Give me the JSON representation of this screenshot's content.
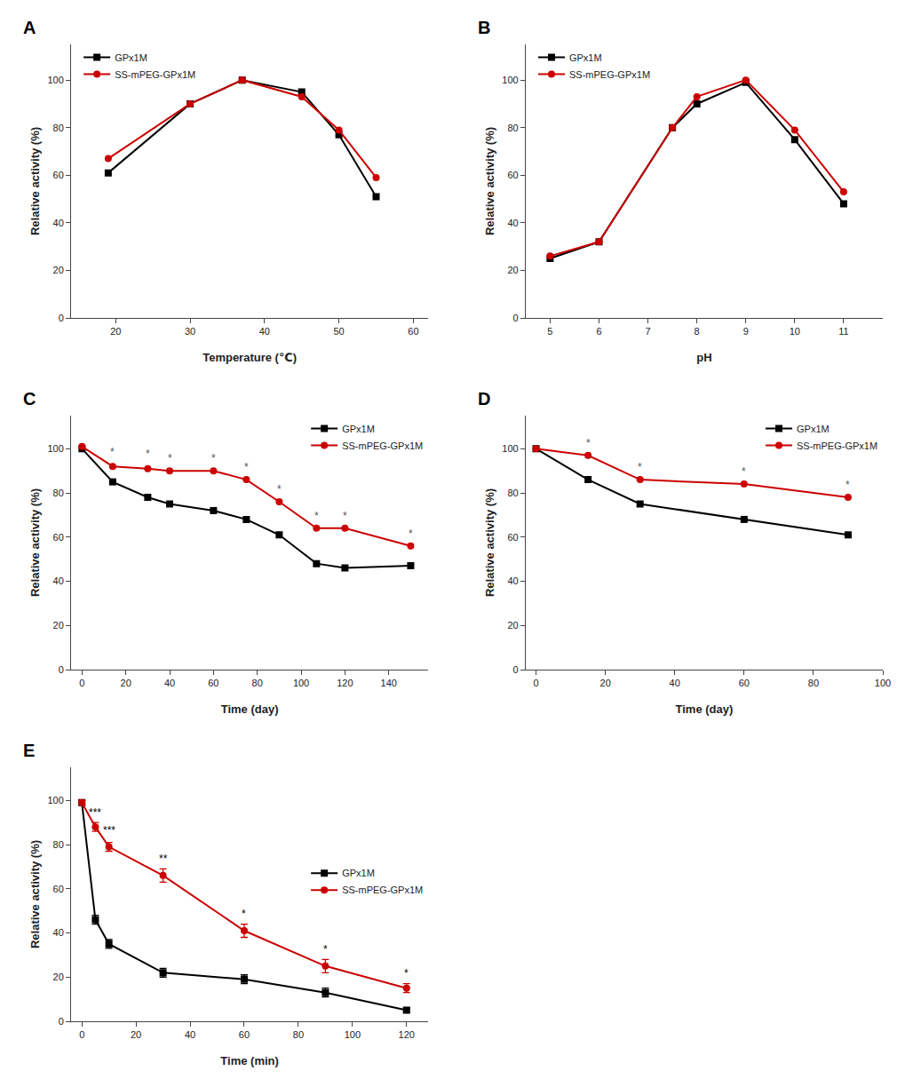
{
  "chart_data": [
    {
      "type": "line",
      "title": "A",
      "xlabel": "Temperature (℃)",
      "ylabel": "Relative activity (%)",
      "xlim": [
        14,
        62
      ],
      "ylim": [
        0,
        115
      ],
      "xticks": [
        20,
        30,
        40,
        50,
        60
      ],
      "yticks": [
        0,
        20,
        40,
        60,
        80,
        100
      ],
      "grid": false,
      "legend": "upper left",
      "series": [
        {
          "name": "GPx1M",
          "color": "#000000",
          "marker": "square",
          "x": [
            19,
            30,
            37,
            45,
            50,
            55
          ],
          "values": [
            61,
            90,
            100,
            95,
            77,
            51
          ]
        },
        {
          "name": "SS-mPEG-GPx1M",
          "color": "#cc0000",
          "marker": "circle",
          "x": [
            19,
            30,
            37,
            45,
            50,
            55
          ],
          "values": [
            67,
            90,
            100,
            93,
            79,
            59
          ]
        }
      ]
    },
    {
      "type": "line",
      "title": "B",
      "xlabel": "pH",
      "ylabel": "Relative activity (%)",
      "xlim": [
        4.5,
        11.8
      ],
      "ylim": [
        0,
        115
      ],
      "xticks": [
        5,
        6,
        7,
        8,
        9,
        10,
        11
      ],
      "yticks": [
        0,
        20,
        40,
        60,
        80,
        100
      ],
      "grid": false,
      "legend": "upper left",
      "series": [
        {
          "name": "GPx1M",
          "color": "#000000",
          "marker": "square",
          "x": [
            5,
            6,
            7.5,
            8,
            9,
            10,
            11
          ],
          "values": [
            25,
            32,
            80,
            90,
            99,
            75,
            48
          ]
        },
        {
          "name": "SS-mPEG-GPx1M",
          "color": "#cc0000",
          "marker": "circle",
          "x": [
            5,
            6,
            7.5,
            8,
            9,
            10,
            11
          ],
          "values": [
            26,
            32,
            80,
            93,
            100,
            79,
            53
          ]
        }
      ]
    },
    {
      "type": "line",
      "title": "C",
      "xlabel": "Time (day)",
      "ylabel": "Relative activity (%)",
      "xlim": [
        -5,
        158
      ],
      "ylim": [
        0,
        115
      ],
      "xticks": [
        0,
        20,
        40,
        60,
        80,
        100,
        120,
        140
      ],
      "yticks": [
        0,
        20,
        40,
        60,
        80,
        100
      ],
      "grid": false,
      "legend": "upper right",
      "series": [
        {
          "name": "GPx1M",
          "color": "#000000",
          "marker": "square",
          "x": [
            0,
            14,
            30,
            40,
            60,
            75,
            90,
            107,
            120,
            150
          ],
          "values": [
            100,
            85,
            78,
            75,
            72,
            68,
            61,
            48,
            46,
            47
          ]
        },
        {
          "name": "SS-mPEG-GPx1M",
          "color": "#cc0000",
          "marker": "circle",
          "x": [
            0,
            14,
            30,
            40,
            60,
            75,
            90,
            107,
            120,
            150
          ],
          "values": [
            101,
            92,
            91,
            90,
            90,
            86,
            76,
            64,
            64,
            56
          ]
        }
      ],
      "annotations": [
        {
          "x": 14,
          "y": 95,
          "text": "*",
          "color": "#555555"
        },
        {
          "x": 30,
          "y": 94,
          "text": "*",
          "color": "#555555"
        },
        {
          "x": 40,
          "y": 92,
          "text": "*",
          "color": "#555555"
        },
        {
          "x": 60,
          "y": 92,
          "text": "*",
          "color": "#555555"
        },
        {
          "x": 75,
          "y": 88,
          "text": "*",
          "color": "#555555"
        },
        {
          "x": 90,
          "y": 78,
          "text": "*",
          "color": "#555555"
        },
        {
          "x": 107,
          "y": 66,
          "text": "*",
          "color": "#555555"
        },
        {
          "x": 120,
          "y": 66,
          "text": "*",
          "color": "#555555"
        },
        {
          "x": 150,
          "y": 58,
          "text": "*",
          "color": "#555555"
        }
      ]
    },
    {
      "type": "line",
      "title": "D",
      "xlabel": "Time (day)",
      "ylabel": "Relative activity (%)",
      "xlim": [
        -3,
        100
      ],
      "ylim": [
        0,
        115
      ],
      "xticks": [
        0,
        20,
        40,
        60,
        80,
        100
      ],
      "yticks": [
        0,
        20,
        40,
        60,
        80,
        100
      ],
      "grid": false,
      "legend": "upper right",
      "series": [
        {
          "name": "GPx1M",
          "color": "#000000",
          "marker": "square",
          "x": [
            0,
            15,
            30,
            60,
            90
          ],
          "values": [
            100,
            86,
            75,
            68,
            61
          ]
        },
        {
          "name": "SS-mPEG-GPx1M",
          "color": "#cc0000",
          "marker": "circle",
          "x": [
            0,
            15,
            30,
            60,
            90
          ],
          "values": [
            100,
            97,
            86,
            84,
            78
          ]
        }
      ],
      "annotations": [
        {
          "x": 15,
          "y": 99,
          "text": "*",
          "color": "#555555"
        },
        {
          "x": 30,
          "y": 88,
          "text": "*",
          "color": "#555555"
        },
        {
          "x": 60,
          "y": 86,
          "text": "*",
          "color": "#555555"
        },
        {
          "x": 90,
          "y": 80,
          "text": "*",
          "color": "#555555"
        }
      ]
    },
    {
      "type": "line",
      "title": "E",
      "xlabel": "Time (min)",
      "ylabel": "Relative activity (%)",
      "xlim": [
        -4,
        128
      ],
      "ylim": [
        0,
        115
      ],
      "xticks": [
        0,
        20,
        40,
        60,
        80,
        100,
        120
      ],
      "yticks": [
        0,
        20,
        40,
        60,
        80,
        100
      ],
      "grid": false,
      "legend": "center right",
      "series": [
        {
          "name": "GPx1M",
          "color": "#000000",
          "marker": "square",
          "x": [
            0,
            5,
            10,
            30,
            60,
            90,
            120
          ],
          "values": [
            99,
            46,
            35,
            22,
            19,
            13,
            5
          ],
          "error": [
            1,
            2,
            2,
            2,
            2,
            2,
            1
          ]
        },
        {
          "name": "SS-mPEG-GPx1M",
          "color": "#cc0000",
          "marker": "circle",
          "x": [
            0,
            5,
            10,
            30,
            60,
            90,
            120
          ],
          "values": [
            99,
            88,
            79,
            66,
            41,
            25,
            15
          ],
          "error": [
            1,
            2,
            2,
            3,
            3,
            3,
            2
          ]
        }
      ],
      "annotations": [
        {
          "x": 5,
          "y": 91,
          "text": "***",
          "color": "#000000"
        },
        {
          "x": 10,
          "y": 83,
          "text": "***",
          "color": "#000000"
        },
        {
          "x": 30,
          "y": 70,
          "text": "**",
          "color": "#000000"
        },
        {
          "x": 60,
          "y": 45,
          "text": "*",
          "color": "#000000"
        },
        {
          "x": 90,
          "y": 29,
          "text": "*",
          "color": "#000000"
        },
        {
          "x": 120,
          "y": 18,
          "text": "*",
          "color": "#000000"
        }
      ]
    }
  ]
}
